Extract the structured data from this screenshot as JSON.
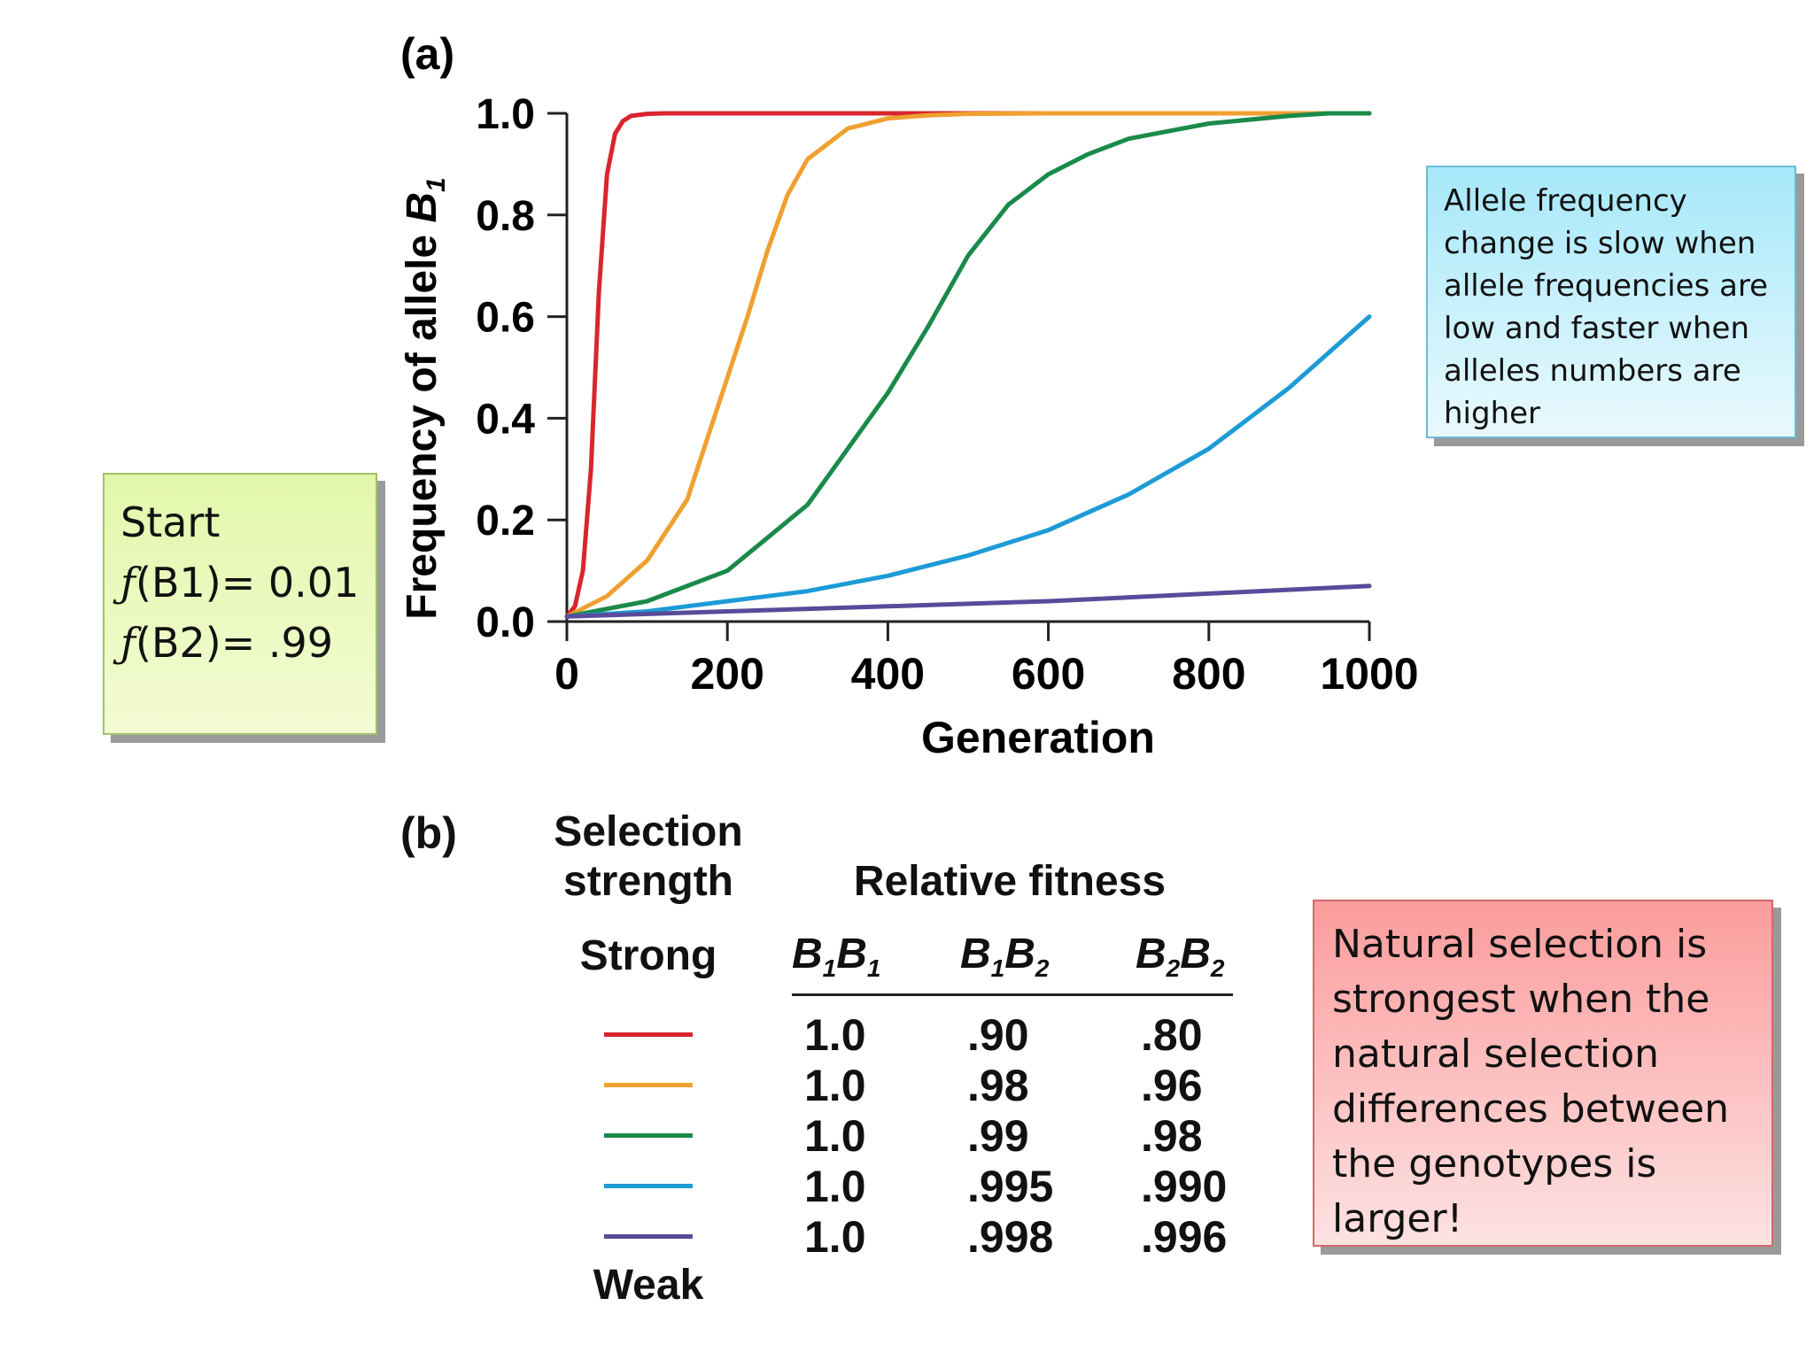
{
  "chart_data": {
    "type": "line",
    "panel_label": "(a)",
    "xlabel": "Generation",
    "ylabel_main": "Frequency of allele ",
    "ylabel_allele": "B",
    "ylabel_sub": "1",
    "xlim": [
      0,
      1000
    ],
    "ylim": [
      0,
      1.0
    ],
    "xticks": [
      0,
      200,
      400,
      600,
      800,
      1000
    ],
    "yticks": [
      "0.0",
      "0.2",
      "0.4",
      "0.6",
      "0.8",
      "1.0"
    ],
    "series": [
      {
        "color": "#d9252d",
        "x": [
          0,
          10,
          20,
          30,
          40,
          50,
          60,
          70,
          80,
          100,
          120,
          150,
          1000
        ],
        "y": [
          0.01,
          0.03,
          0.1,
          0.3,
          0.65,
          0.88,
          0.96,
          0.985,
          0.995,
          0.999,
          1.0,
          1.0,
          1.0
        ]
      },
      {
        "color": "#f0a030",
        "x": [
          0,
          50,
          100,
          150,
          200,
          225,
          250,
          275,
          300,
          350,
          400,
          450,
          500,
          600,
          1000
        ],
        "y": [
          0.01,
          0.05,
          0.12,
          0.24,
          0.48,
          0.6,
          0.73,
          0.84,
          0.91,
          0.97,
          0.99,
          0.996,
          0.999,
          1.0,
          1.0
        ]
      },
      {
        "color": "#1a8a4a",
        "x": [
          0,
          100,
          200,
          300,
          400,
          450,
          500,
          550,
          600,
          650,
          700,
          800,
          900,
          950,
          1000
        ],
        "y": [
          0.01,
          0.04,
          0.1,
          0.23,
          0.45,
          0.58,
          0.72,
          0.82,
          0.88,
          0.92,
          0.95,
          0.98,
          0.995,
          1.0,
          1.0
        ]
      },
      {
        "color": "#1d9bd6",
        "x": [
          0,
          100,
          200,
          300,
          400,
          500,
          600,
          700,
          800,
          900,
          1000
        ],
        "y": [
          0.01,
          0.02,
          0.04,
          0.06,
          0.09,
          0.13,
          0.18,
          0.25,
          0.34,
          0.46,
          0.6
        ]
      },
      {
        "color": "#5a4a9a",
        "x": [
          0,
          200,
          400,
          600,
          800,
          1000
        ],
        "y": [
          0.01,
          0.02,
          0.03,
          0.04,
          0.055,
          0.07
        ]
      }
    ]
  },
  "table": {
    "panel_label": "(b)",
    "selection_heading_1": "Selection",
    "selection_heading_2": "strength",
    "fitness_heading": "Relative fitness",
    "strong_label": "Strong",
    "weak_label": "Weak",
    "genotypes": [
      {
        "a": "B",
        "a_sub": "1",
        "b": "B",
        "b_sub": "1"
      },
      {
        "a": "B",
        "a_sub": "1",
        "b": "B",
        "b_sub": "2"
      },
      {
        "a": "B",
        "a_sub": "2",
        "b": "B",
        "b_sub": "2"
      }
    ],
    "rows": [
      {
        "color": "#d9252d",
        "b1b1": "1.0",
        "b1b2": ".90",
        "b2b2": ".80"
      },
      {
        "color": "#f0a030",
        "b1b1": "1.0",
        "b1b2": ".98",
        "b2b2": ".96"
      },
      {
        "color": "#1a8a4a",
        "b1b1": "1.0",
        "b1b2": ".99",
        "b2b2": ".98"
      },
      {
        "color": "#1d9bd6",
        "b1b1": "1.0",
        "b1b2": ".995",
        "b2b2": ".990"
      },
      {
        "color": "#5a4a9a",
        "b1b1": "1.0",
        "b1b2": ".998",
        "b2b2": ".996"
      }
    ]
  },
  "notes": {
    "start": {
      "line1": "Start",
      "f_symbol": "ƒ",
      "line2_rest": "(B1)= 0.01",
      "line3_rest": "(B2)= .99"
    },
    "blue_text": "Allele frequency change is slow when allele frequencies are low and faster when alleles numbers are higher",
    "red_text": "Natural selection is strongest when the natural selection differences between the genotypes is larger!"
  }
}
